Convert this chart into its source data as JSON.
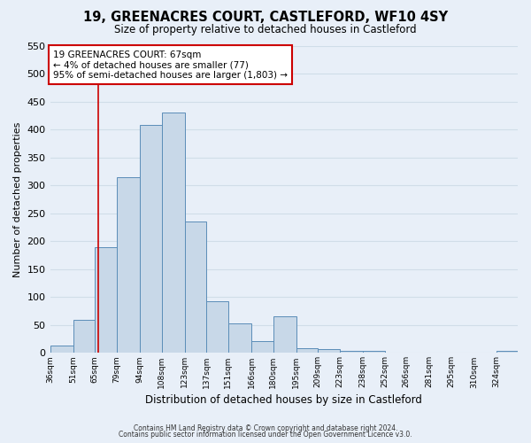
{
  "title": "19, GREENACRES COURT, CASTLEFORD, WF10 4SY",
  "subtitle": "Size of property relative to detached houses in Castleford",
  "xlabel": "Distribution of detached houses by size in Castleford",
  "ylabel": "Number of detached properties",
  "bin_labels": [
    "36sqm",
    "51sqm",
    "65sqm",
    "79sqm",
    "94sqm",
    "108sqm",
    "123sqm",
    "137sqm",
    "151sqm",
    "166sqm",
    "180sqm",
    "195sqm",
    "209sqm",
    "223sqm",
    "238sqm",
    "252sqm",
    "266sqm",
    "281sqm",
    "295sqm",
    "310sqm",
    "324sqm"
  ],
  "bin_edges": [
    36,
    51,
    65,
    79,
    94,
    108,
    123,
    137,
    151,
    166,
    180,
    195,
    209,
    223,
    238,
    252,
    266,
    281,
    295,
    310,
    324,
    338
  ],
  "bar_heights": [
    13,
    60,
    190,
    315,
    408,
    430,
    235,
    93,
    53,
    22,
    65,
    9,
    7,
    4,
    4,
    1,
    0,
    0,
    0,
    0,
    4
  ],
  "bar_color": "#c8d8e8",
  "bar_edge_color": "#5b8db8",
  "property_size": 67,
  "vline_color": "#cc0000",
  "annotation_line1": "19 GREENACRES COURT: 67sqm",
  "annotation_line2": "← 4% of detached houses are smaller (77)",
  "annotation_line3": "95% of semi-detached houses are larger (1,803) →",
  "annotation_box_color": "#ffffff",
  "annotation_box_edge_color": "#cc0000",
  "ylim": [
    0,
    550
  ],
  "yticks": [
    0,
    50,
    100,
    150,
    200,
    250,
    300,
    350,
    400,
    450,
    500,
    550
  ],
  "grid_color": "#d0dde8",
  "background_color": "#e8eff8",
  "footer_line1": "Contains HM Land Registry data © Crown copyright and database right 2024.",
  "footer_line2": "Contains public sector information licensed under the Open Government Licence v3.0."
}
